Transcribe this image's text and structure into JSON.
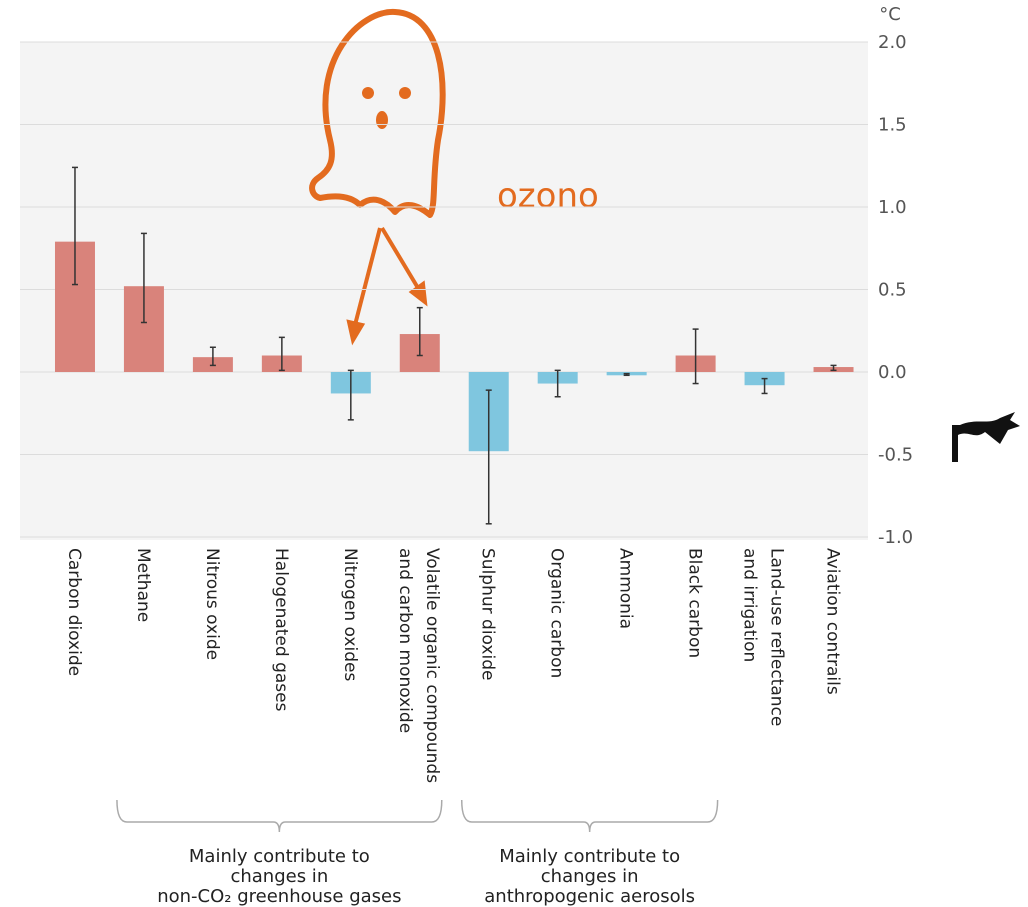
{
  "chart_data": {
    "type": "bar",
    "unit": "°C",
    "annotation": "ozono",
    "categories": [
      [
        "Carbon dioxide"
      ],
      [
        "Methane"
      ],
      [
        "Nitrous oxide"
      ],
      [
        "Halogenated gases"
      ],
      [
        "Nitrogen oxides"
      ],
      [
        "Volatile organic compounds",
        "and carbon monoxide"
      ],
      [
        "Sulphur dioxide"
      ],
      [
        "Organic carbon"
      ],
      [
        "Ammonia"
      ],
      [
        "Black carbon"
      ],
      [
        "Land-use reflectance",
        "and irrigation"
      ],
      [
        "Aviation contrails"
      ]
    ],
    "values": [
      0.79,
      0.52,
      0.09,
      0.1,
      -0.13,
      0.23,
      -0.48,
      -0.07,
      -0.02,
      0.1,
      -0.08,
      0.03
    ],
    "error_low": [
      0.53,
      0.3,
      0.04,
      0.01,
      -0.29,
      0.1,
      -0.92,
      -0.15,
      -0.02,
      -0.07,
      -0.13,
      0.01
    ],
    "error_high": [
      1.24,
      0.84,
      0.15,
      0.21,
      0.01,
      0.39,
      -0.11,
      0.01,
      -0.01,
      0.26,
      -0.04,
      0.04
    ],
    "colors": [
      "#d9837b",
      "#d9837b",
      "#d9837b",
      "#d9837b",
      "#7fc6df",
      "#d9837b",
      "#7fc6df",
      "#7fc6df",
      "#7fc6df",
      "#d9837b",
      "#7fc6df",
      "#d9837b"
    ],
    "ylim": [
      -1.0,
      2.0
    ],
    "yticks": [
      {
        "value": -1.0,
        "label": "-1.0"
      },
      {
        "value": -0.5,
        "label": "-0.5"
      },
      {
        "value": 0.0,
        "label": "0.0"
      },
      {
        "value": 0.5,
        "label": "0.5"
      },
      {
        "value": 1.0,
        "label": "1.0"
      },
      {
        "value": 1.5,
        "label": "1.5"
      },
      {
        "value": 2.0,
        "label": "2.0"
      }
    ],
    "grid": true,
    "groups": [
      {
        "lines": [
          "Mainly contribute to",
          "changes in",
          "non-CO₂ greenhouse gases"
        ],
        "first": 1,
        "last": 5
      },
      {
        "lines": [
          "Mainly contribute to",
          "changes in",
          "anthropogenic aerosols"
        ],
        "first": 6,
        "last": 9
      }
    ]
  }
}
